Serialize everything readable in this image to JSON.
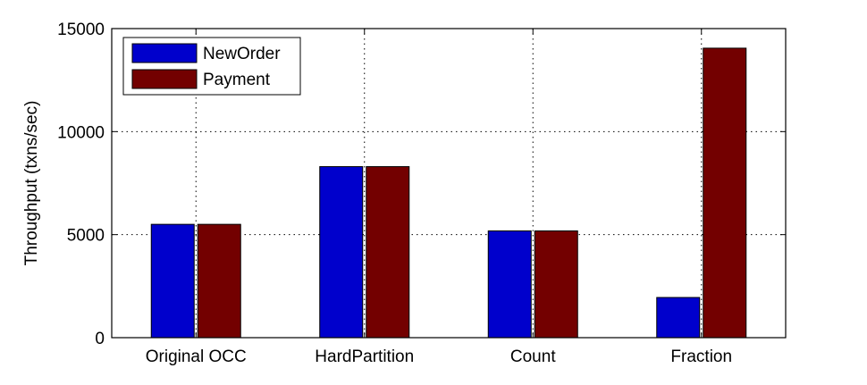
{
  "chart_data": {
    "type": "bar",
    "categories": [
      "Original OCC",
      "HardPartition",
      "Count",
      "Fraction"
    ],
    "series": [
      {
        "name": "NewOrder",
        "values": [
          5500,
          8300,
          5180,
          1950
        ],
        "color": "#0000cc"
      },
      {
        "name": "Payment",
        "values": [
          5500,
          8300,
          5180,
          14050
        ],
        "color": "#730000"
      }
    ],
    "title": "",
    "xlabel": "",
    "ylabel": "Throughput (txns/sec)",
    "ylim": [
      0,
      15000
    ],
    "yticks": [
      0,
      5000,
      10000,
      15000
    ],
    "ytick_labels": [
      "0",
      "5000",
      "10000",
      "15000"
    ],
    "grid": true,
    "grid_style": "dotted",
    "legend_position": "top-left"
  }
}
